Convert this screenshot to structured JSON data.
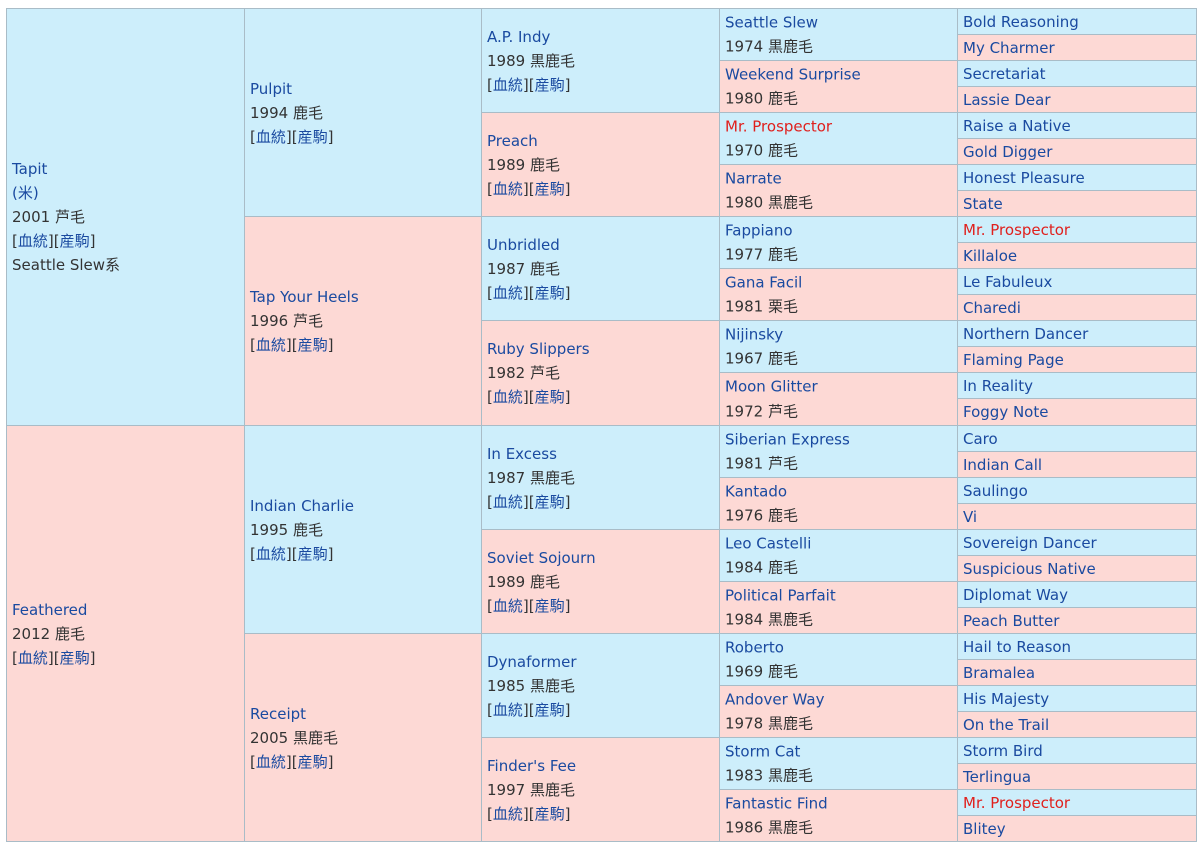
{
  "page": {
    "title": ""
  },
  "colors": {
    "male_bg": "#cdeefb",
    "female_bg": "#fdd9d5",
    "link": "#1a4aa0",
    "highlight": "#e0201d",
    "border": "#a9bcc7"
  },
  "links": {
    "pedigree": "血統",
    "progeny": "産駒"
  },
  "pedigree": {
    "gen1": [
      {
        "name": "Tapit",
        "extra_lines": [
          "(米)"
        ],
        "info": "2001 芦毛",
        "has_links": true,
        "lineage": "Seattle Slew系"
      },
      {
        "name": "Feathered",
        "extra_lines": [],
        "info": "2012 鹿毛",
        "has_links": true,
        "lineage": ""
      }
    ],
    "gen2": [
      {
        "name": "Pulpit",
        "info": "1994 鹿毛"
      },
      {
        "name": "Tap Your Heels",
        "info": "1996 芦毛"
      },
      {
        "name": "Indian Charlie",
        "info": "1995 鹿毛"
      },
      {
        "name": "Receipt",
        "info": "2005 黒鹿毛"
      }
    ],
    "gen3": [
      {
        "name": "A.P. Indy",
        "info": "1989 黒鹿毛"
      },
      {
        "name": "Preach",
        "info": "1989 鹿毛"
      },
      {
        "name": "Unbridled",
        "info": "1987 鹿毛"
      },
      {
        "name": "Ruby Slippers",
        "info": "1982 芦毛"
      },
      {
        "name": "In Excess",
        "info": "1987 黒鹿毛"
      },
      {
        "name": "Soviet Sojourn",
        "info": "1989 鹿毛"
      },
      {
        "name": "Dynaformer",
        "info": "1985 黒鹿毛"
      },
      {
        "name": "Finder's Fee",
        "info": "1997 黒鹿毛"
      }
    ],
    "gen4": [
      {
        "name": "Seattle Slew",
        "info": "1974 黒鹿毛",
        "highlight": false
      },
      {
        "name": "Weekend Surprise",
        "info": "1980 鹿毛",
        "highlight": false
      },
      {
        "name": "Mr. Prospector",
        "info": "1970 鹿毛",
        "highlight": true
      },
      {
        "name": "Narrate",
        "info": "1980 黒鹿毛",
        "highlight": false
      },
      {
        "name": "Fappiano",
        "info": "1977 鹿毛",
        "highlight": false
      },
      {
        "name": "Gana Facil",
        "info": "1981 栗毛",
        "highlight": false
      },
      {
        "name": "Nijinsky",
        "info": "1967 鹿毛",
        "highlight": false
      },
      {
        "name": "Moon Glitter",
        "info": "1972 芦毛",
        "highlight": false
      },
      {
        "name": "Siberian Express",
        "info": "1981 芦毛",
        "highlight": false
      },
      {
        "name": "Kantado",
        "info": "1976 鹿毛",
        "highlight": false
      },
      {
        "name": "Leo Castelli",
        "info": "1984 鹿毛",
        "highlight": false
      },
      {
        "name": "Political Parfait",
        "info": "1984 黒鹿毛",
        "highlight": false
      },
      {
        "name": "Roberto",
        "info": "1969 鹿毛",
        "highlight": false
      },
      {
        "name": "Andover Way",
        "info": "1978 黒鹿毛",
        "highlight": false
      },
      {
        "name": "Storm Cat",
        "info": "1983 黒鹿毛",
        "highlight": false
      },
      {
        "name": "Fantastic Find",
        "info": "1986 黒鹿毛",
        "highlight": false
      }
    ],
    "gen5": [
      {
        "name": "Bold Reasoning",
        "highlight": false
      },
      {
        "name": "My Charmer",
        "highlight": false
      },
      {
        "name": "Secretariat",
        "highlight": false
      },
      {
        "name": "Lassie Dear",
        "highlight": false
      },
      {
        "name": "Raise a Native",
        "highlight": false
      },
      {
        "name": "Gold Digger",
        "highlight": false
      },
      {
        "name": "Honest Pleasure",
        "highlight": false
      },
      {
        "name": "State",
        "highlight": false
      },
      {
        "name": "Mr. Prospector",
        "highlight": true
      },
      {
        "name": "Killaloe",
        "highlight": false
      },
      {
        "name": "Le Fabuleux",
        "highlight": false
      },
      {
        "name": "Charedi",
        "highlight": false
      },
      {
        "name": "Northern Dancer",
        "highlight": false
      },
      {
        "name": "Flaming Page",
        "highlight": false
      },
      {
        "name": "In Reality",
        "highlight": false
      },
      {
        "name": "Foggy Note",
        "highlight": false
      },
      {
        "name": "Caro",
        "highlight": false
      },
      {
        "name": "Indian Call",
        "highlight": false
      },
      {
        "name": "Saulingo",
        "highlight": false
      },
      {
        "name": "Vi",
        "highlight": false
      },
      {
        "name": "Sovereign Dancer",
        "highlight": false
      },
      {
        "name": "Suspicious Native",
        "highlight": false
      },
      {
        "name": "Diplomat Way",
        "highlight": false
      },
      {
        "name": "Peach Butter",
        "highlight": false
      },
      {
        "name": "Hail to Reason",
        "highlight": false
      },
      {
        "name": "Bramalea",
        "highlight": false
      },
      {
        "name": "His Majesty",
        "highlight": false
      },
      {
        "name": "On the Trail",
        "highlight": false
      },
      {
        "name": "Storm Bird",
        "highlight": false
      },
      {
        "name": "Terlingua",
        "highlight": false
      },
      {
        "name": "Mr. Prospector",
        "highlight": true
      },
      {
        "name": "Blitey",
        "highlight": false
      }
    ]
  }
}
